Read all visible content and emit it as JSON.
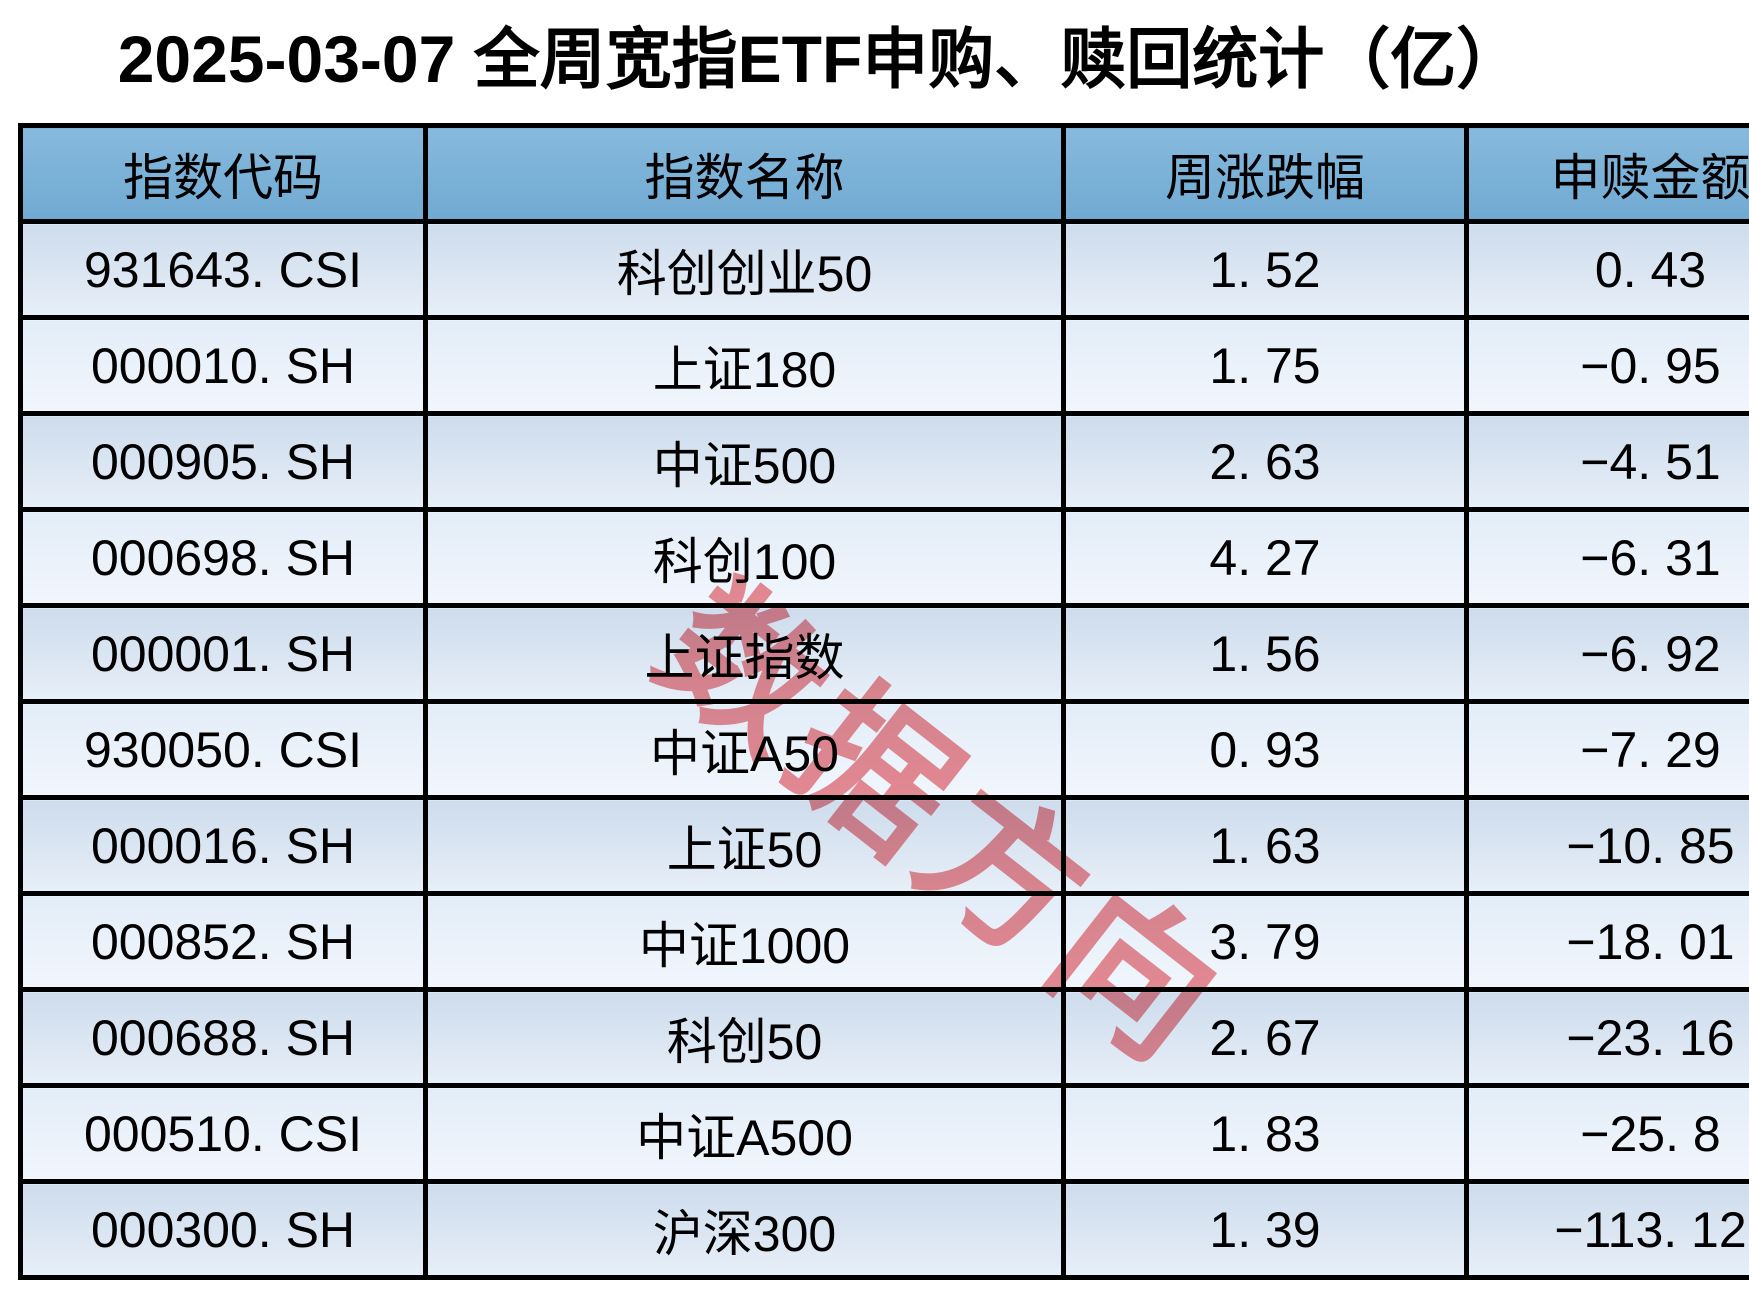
{
  "title": "2025-03-07 全周宽指ETF申购、赎回统计（亿）",
  "watermark": {
    "text": "数据方向",
    "color": "#ef8d93"
  },
  "colors": {
    "header_bg_top": "#87b9dd",
    "header_bg_bottom": "#70aad2",
    "row_odd_top": "#cedcec",
    "row_odd_bottom": "#e7eff8",
    "row_even_top": "#e3edf8",
    "row_even_bottom": "#f1f6fc",
    "grid_border": "#000000",
    "text": "#000000",
    "watermark": "#ef8d93",
    "page_bg": "#ffffff"
  },
  "table": {
    "columns": [
      "指数代码",
      "指数名称",
      "周涨跌幅",
      "申赎金额"
    ],
    "rows": [
      {
        "code": "931643. CSI",
        "name": "科创创业50",
        "change": "1. 52",
        "amount": "0. 43"
      },
      {
        "code": "000010. SH",
        "name": "上证180",
        "change": "1. 75",
        "amount": "−0. 95"
      },
      {
        "code": "000905. SH",
        "name": "中证500",
        "change": "2. 63",
        "amount": "−4. 51"
      },
      {
        "code": "000698. SH",
        "name": "科创100",
        "change": "4. 27",
        "amount": "−6. 31"
      },
      {
        "code": "000001. SH",
        "name": "上证指数",
        "change": "1. 56",
        "amount": "−6. 92"
      },
      {
        "code": "930050. CSI",
        "name": "中证A50",
        "change": "0. 93",
        "amount": "−7. 29"
      },
      {
        "code": "000016. SH",
        "name": "上证50",
        "change": "1. 63",
        "amount": "−10. 85"
      },
      {
        "code": "000852. SH",
        "name": "中证1000",
        "change": "3. 79",
        "amount": "−18. 01"
      },
      {
        "code": "000688. SH",
        "name": "科创50",
        "change": "2. 67",
        "amount": "−23. 16"
      },
      {
        "code": "000510. CSI",
        "name": "中证A500",
        "change": "1. 83",
        "amount": "−25. 8"
      },
      {
        "code": "000300. SH",
        "name": "沪深300",
        "change": "1. 39",
        "amount": "−113. 12"
      }
    ]
  },
  "chart_data": {
    "type": "table",
    "title": "2025-03-07 全周宽指ETF申购、赎回统计（亿）",
    "columns": [
      "指数代码",
      "指数名称",
      "周涨跌幅",
      "申赎金额"
    ],
    "rows": [
      {
        "指数代码": "931643.CSI",
        "指数名称": "科创创业50",
        "周涨跌幅": 1.52,
        "申赎金额": 0.43
      },
      {
        "指数代码": "000010.SH",
        "指数名称": "上证180",
        "周涨跌幅": 1.75,
        "申赎金额": -0.95
      },
      {
        "指数代码": "000905.SH",
        "指数名称": "中证500",
        "周涨跌幅": 2.63,
        "申赎金额": -4.51
      },
      {
        "指数代码": "000698.SH",
        "指数名称": "科创100",
        "周涨跌幅": 4.27,
        "申赎金额": -6.31
      },
      {
        "指数代码": "000001.SH",
        "指数名称": "上证指数",
        "周涨跌幅": 1.56,
        "申赎金额": -6.92
      },
      {
        "指数代码": "930050.CSI",
        "指数名称": "中证A50",
        "周涨跌幅": 0.93,
        "申赎金额": -7.29
      },
      {
        "指数代码": "000016.SH",
        "指数名称": "上证50",
        "周涨跌幅": 1.63,
        "申赎金额": -10.85
      },
      {
        "指数代码": "000852.SH",
        "指数名称": "中证1000",
        "周涨跌幅": 3.79,
        "申赎金额": -18.01
      },
      {
        "指数代码": "000688.SH",
        "指数名称": "科创50",
        "周涨跌幅": 2.67,
        "申赎金额": -23.16
      },
      {
        "指数代码": "000510.CSI",
        "指数名称": "中证A500",
        "周涨跌幅": 1.83,
        "申赎金额": -25.8
      },
      {
        "指数代码": "000300.SH",
        "指数名称": "沪深300",
        "周涨跌幅": 1.39,
        "申赎金额": -113.12
      }
    ],
    "notes": "Table cropped at right edge (申赎金额 column partially visible) and bottom edge (沪深300 row partially visible). Unit: 亿 (100 million CNY)."
  }
}
